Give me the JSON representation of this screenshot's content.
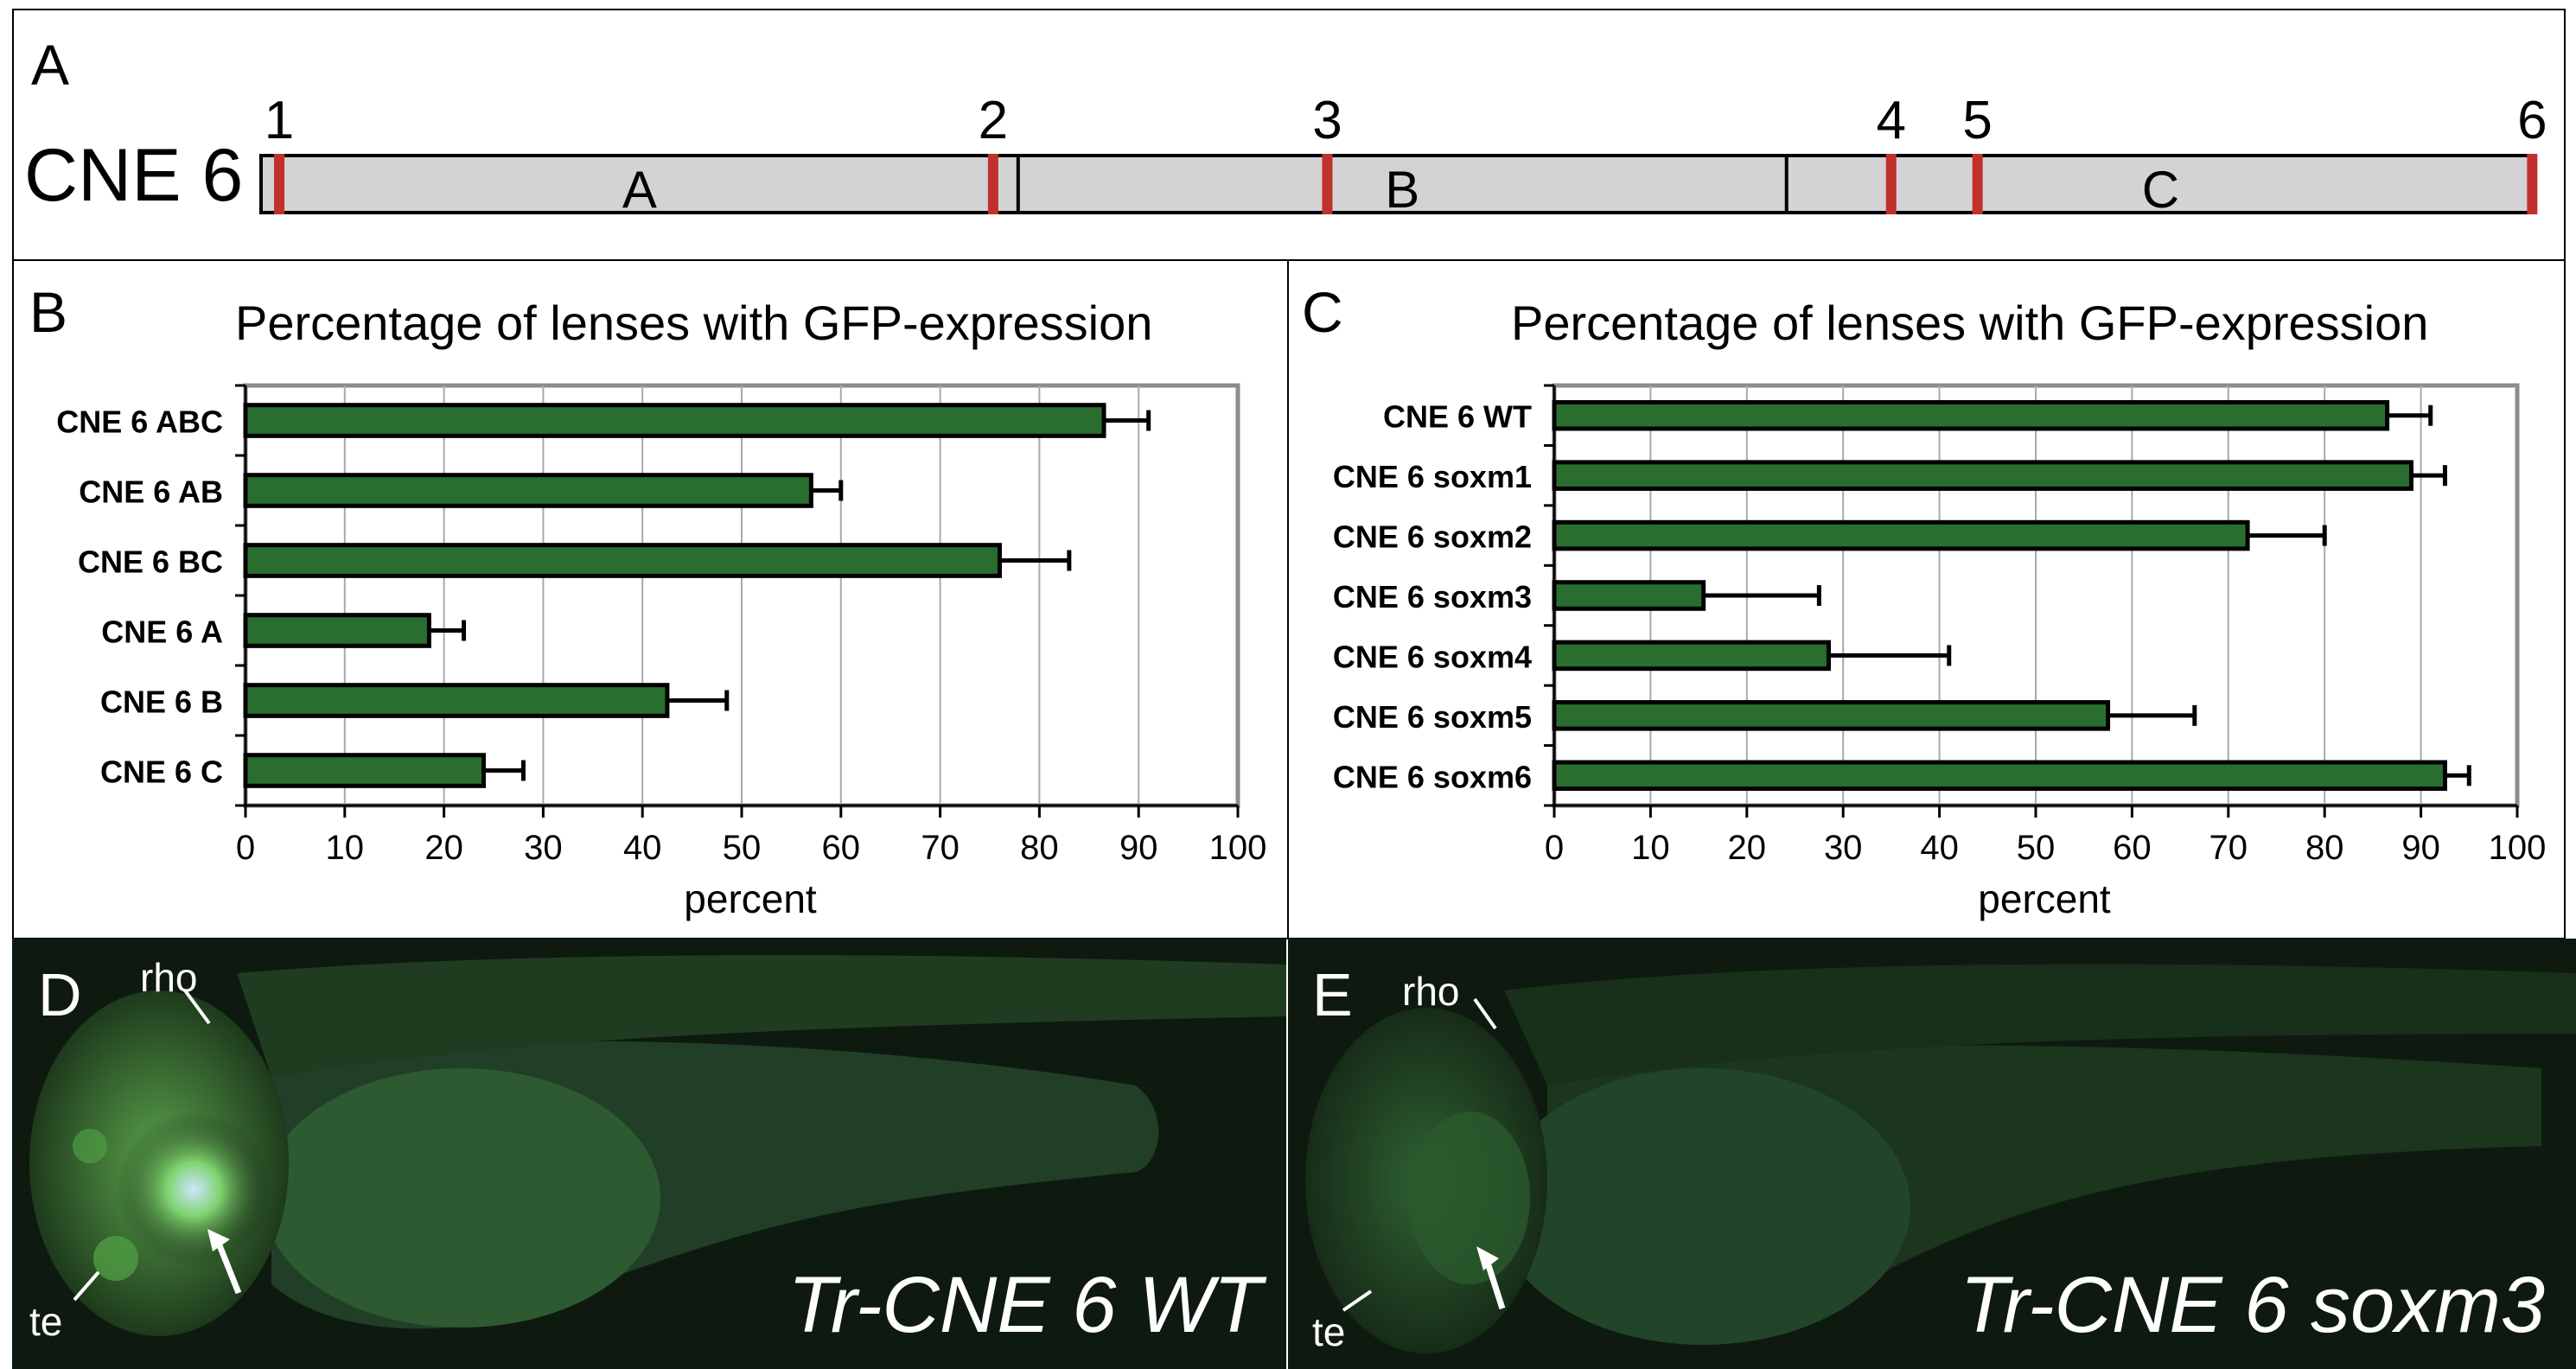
{
  "panelA": {
    "letter": "A",
    "construct_label": "CNE 6",
    "segments": [
      "A",
      "B",
      "C"
    ],
    "sites": [
      {
        "label": "1",
        "pos": 0.008
      },
      {
        "label": "2",
        "pos": 0.322
      },
      {
        "label": "3",
        "pos": 0.469
      },
      {
        "label": "4",
        "pos": 0.717
      },
      {
        "label": "5",
        "pos": 0.755
      },
      {
        "label": "6",
        "pos": 0.999
      }
    ],
    "segment_bounds": [
      0,
      0.333,
      0.671,
      1
    ],
    "colors": {
      "bar": "#d3d3d5",
      "site": "#c0302c"
    }
  },
  "chart_data": [
    {
      "type": "bar",
      "orientation": "horizontal",
      "letter": "B",
      "title": "Percentage of lenses with GFP-expression",
      "xlabel": "percent",
      "ylabel": "",
      "xlim": [
        0,
        100
      ],
      "ticks": [
        "0",
        "10",
        "20",
        "30",
        "40",
        "50",
        "60",
        "70",
        "80",
        "90",
        "100"
      ],
      "grid": true,
      "categories": [
        "CNE 6 ABC",
        "CNE 6 AB",
        "CNE 6 BC",
        "CNE 6 A",
        "CNE 6 B",
        "CNE 6 C"
      ],
      "values": [
        86.5,
        57,
        76,
        18.5,
        42.5,
        24
      ],
      "errors": [
        4.5,
        3,
        7,
        3.5,
        6,
        4
      ],
      "bar_color": "#2a6e2f"
    },
    {
      "type": "bar",
      "orientation": "horizontal",
      "letter": "C",
      "title": "Percentage of lenses with GFP-expression",
      "xlabel": "percent",
      "ylabel": "",
      "xlim": [
        0,
        100
      ],
      "ticks": [
        "0",
        "10",
        "20",
        "30",
        "40",
        "50",
        "60",
        "70",
        "80",
        "90",
        "100"
      ],
      "grid": true,
      "categories": [
        "CNE 6 WT",
        "CNE 6 soxm1",
        "CNE 6 soxm2",
        "CNE 6 soxm3",
        "CNE 6 soxm4",
        "CNE 6 soxm5",
        "CNE 6 soxm6"
      ],
      "values": [
        86.5,
        89,
        72,
        15.5,
        28.5,
        57.5,
        92.5
      ],
      "errors": [
        4.5,
        3.5,
        8,
        12,
        12.5,
        9,
        2.5
      ],
      "bar_color": "#2a6e2f"
    }
  ],
  "panelD": {
    "letter": "D",
    "caption": "Tr-CNE 6 WT",
    "label_rho": "rho",
    "label_te": "te"
  },
  "panelE": {
    "letter": "E",
    "caption": "Tr-CNE 6 soxm3",
    "label_rho": "rho",
    "label_te": "te"
  }
}
